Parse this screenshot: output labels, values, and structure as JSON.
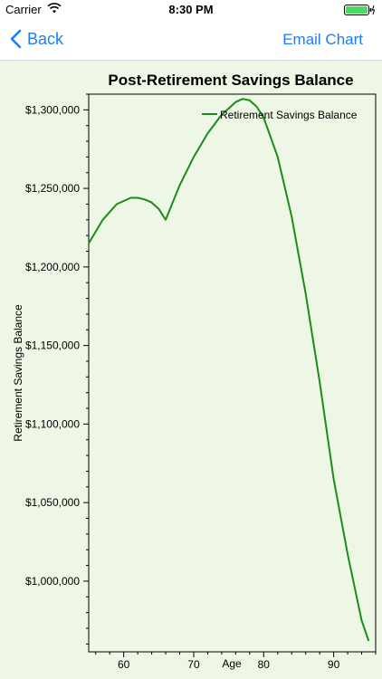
{
  "status": {
    "carrier": "Carrier",
    "time": "8:30 PM"
  },
  "nav": {
    "back_label": "Back",
    "email_label": "Email Chart"
  },
  "colors": {
    "accent": "#1a7ef5",
    "series": "#1a8c1a",
    "plot_bg": "#eef6e6"
  },
  "chart_data": {
    "type": "line",
    "title": "Post-Retirement Savings Balance",
    "xlabel": "Age",
    "ylabel": "Retirement Savings Balance",
    "xlim": [
      55,
      96
    ],
    "ylim": [
      955000,
      1310000
    ],
    "x_ticks": [
      60,
      70,
      80,
      90
    ],
    "x_tick_labels": [
      "60",
      "70",
      "80",
      "90"
    ],
    "y_ticks": [
      1000000,
      1050000,
      1100000,
      1150000,
      1200000,
      1250000,
      1300000
    ],
    "y_tick_labels": [
      "$1,000,000",
      "$1,050,000",
      "$1,100,000",
      "$1,150,000",
      "$1,200,000",
      "$1,250,000",
      "$1,300,000"
    ],
    "legend": "top-right",
    "series": [
      {
        "name": "Retirement Savings Balance",
        "x": [
          55,
          57,
          59,
          61,
          62,
          63,
          64,
          65,
          66,
          68,
          70,
          72,
          74,
          76,
          77,
          78,
          79,
          80,
          82,
          84,
          86,
          88,
          90,
          92,
          94,
          95
        ],
        "y": [
          1215000,
          1230000,
          1240000,
          1244000,
          1244000,
          1243000,
          1241000,
          1237000,
          1230000,
          1252000,
          1270000,
          1285000,
          1297000,
          1305000,
          1307000,
          1306000,
          1302000,
          1295000,
          1270000,
          1232000,
          1183000,
          1127000,
          1065000,
          1017000,
          975000,
          962000
        ]
      }
    ]
  }
}
